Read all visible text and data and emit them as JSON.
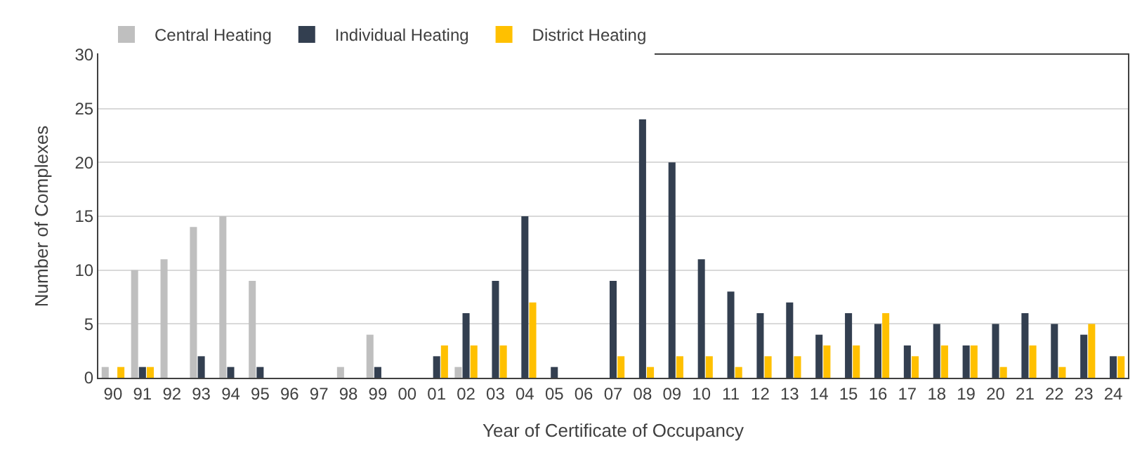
{
  "chart_data": {
    "type": "bar",
    "xlabel": "Year of Certificate of Occupancy",
    "ylabel": "Number of Complexes",
    "categories": [
      "90",
      "91",
      "92",
      "93",
      "94",
      "95",
      "96",
      "97",
      "98",
      "99",
      "00",
      "01",
      "02",
      "03",
      "04",
      "05",
      "06",
      "07",
      "08",
      "09",
      "10",
      "11",
      "12",
      "13",
      "14",
      "15",
      "16",
      "17",
      "18",
      "19",
      "20",
      "21",
      "22",
      "23",
      "24"
    ],
    "series": [
      {
        "name": "Central Heating",
        "color": "#bfbfbf",
        "values": [
          1,
          10,
          11,
          14,
          15,
          9,
          0,
          0,
          1,
          4,
          0,
          0,
          1,
          0,
          0,
          0,
          0,
          0,
          0,
          0,
          0,
          0,
          0,
          0,
          0,
          0,
          0,
          0,
          0,
          0,
          0,
          0,
          0,
          0,
          0
        ]
      },
      {
        "name": "Individual Heating",
        "color": "#333f50",
        "values": [
          0,
          1,
          0,
          2,
          1,
          1,
          0,
          0,
          0,
          1,
          0,
          2,
          6,
          9,
          15,
          1,
          0,
          9,
          24,
          20,
          11,
          8,
          6,
          7,
          4,
          6,
          5,
          3,
          5,
          3,
          5,
          6,
          5,
          4,
          2
        ]
      },
      {
        "name": "District Heating",
        "color": "#ffc000",
        "values": [
          1,
          1,
          0,
          0,
          0,
          0,
          0,
          0,
          0,
          0,
          0,
          3,
          3,
          3,
          7,
          0,
          0,
          2,
          1,
          2,
          2,
          1,
          2,
          2,
          3,
          3,
          6,
          2,
          3,
          3,
          1,
          3,
          1,
          5,
          2
        ]
      }
    ],
    "ylim": [
      0,
      30
    ],
    "yticks": [
      0,
      5,
      10,
      15,
      20,
      25,
      30
    ],
    "grid": "y",
    "legend": "top left"
  }
}
